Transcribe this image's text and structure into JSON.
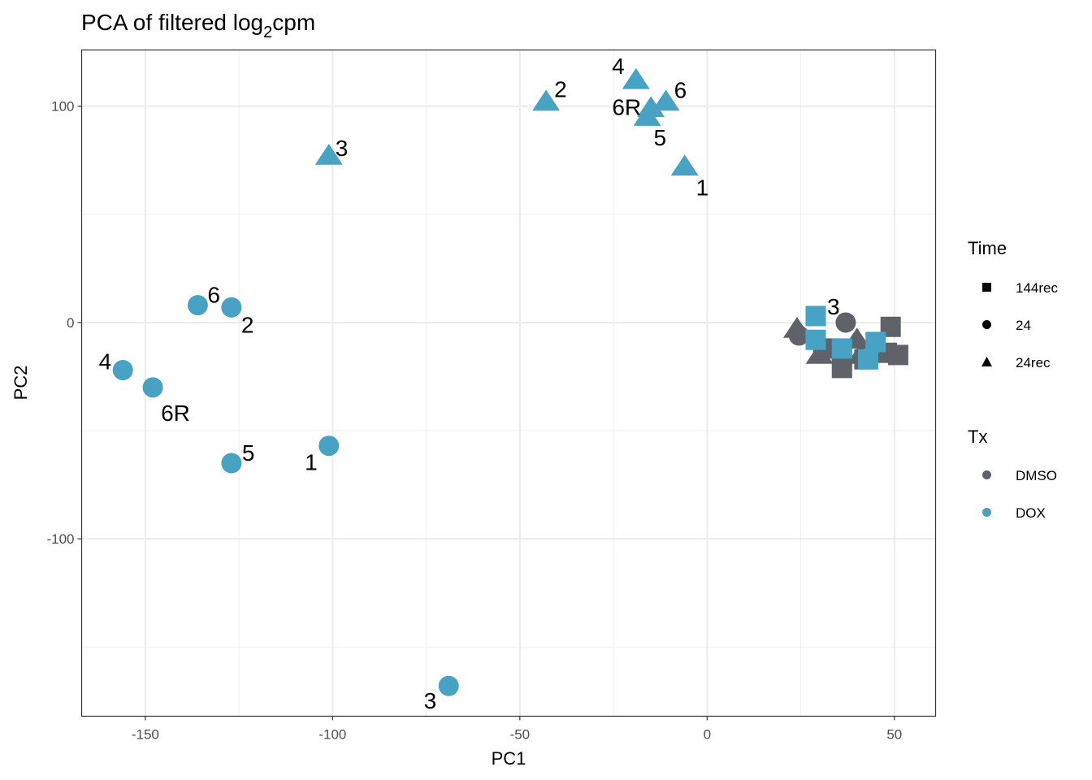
{
  "chart_data": {
    "type": "scatter",
    "title_main": "PCA of filtered log",
    "title_sub": "2",
    "title_end": "cpm",
    "xlabel": "PC1",
    "ylabel": "PC2",
    "xlim": [
      -167,
      61
    ],
    "ylim": [
      -182,
      126
    ],
    "x_ticks": [
      -150,
      -100,
      -50,
      0,
      50
    ],
    "x_tick_labels": [
      "-150",
      "-100",
      "-50",
      "0",
      "50"
    ],
    "y_ticks": [
      -100,
      0,
      100
    ],
    "y_tick_labels": [
      "-100",
      "0",
      "100"
    ],
    "grid": true,
    "legend_position": "right",
    "colors": {
      "DMSO": "#5f6268",
      "DOX": "#48a2c3"
    },
    "legend": {
      "time": {
        "title": "Time",
        "items": [
          {
            "label": "144rec",
            "shape": "square"
          },
          {
            "label": "24",
            "shape": "circle"
          },
          {
            "label": "24rec",
            "shape": "triangle"
          }
        ]
      },
      "tx": {
        "title": "Tx",
        "items": [
          {
            "label": "DMSO"
          },
          {
            "label": "DOX"
          }
        ]
      }
    },
    "points": [
      {
        "x": 24.5,
        "y": -6,
        "time": "24",
        "tx": "DMSO",
        "label": ""
      },
      {
        "x": 37,
        "y": 0,
        "time": "24",
        "tx": "DMSO",
        "label": ""
      },
      {
        "x": 24,
        "y": -3,
        "time": "24rec",
        "tx": "DMSO",
        "label": ""
      },
      {
        "x": 30,
        "y": -15,
        "time": "24rec",
        "tx": "DMSO",
        "label": ""
      },
      {
        "x": 40,
        "y": -8,
        "time": "24rec",
        "tx": "DMSO",
        "label": ""
      },
      {
        "x": 41,
        "y": -15,
        "time": "24rec",
        "tx": "DMSO",
        "label": ""
      },
      {
        "x": 31,
        "y": -12,
        "time": "144rec",
        "tx": "DMSO",
        "label": ""
      },
      {
        "x": 36,
        "y": -15,
        "time": "144rec",
        "tx": "DMSO",
        "label": ""
      },
      {
        "x": 36,
        "y": -21,
        "time": "144rec",
        "tx": "DMSO",
        "label": ""
      },
      {
        "x": 42,
        "y": -17,
        "time": "144rec",
        "tx": "DMSO",
        "label": ""
      },
      {
        "x": 49,
        "y": -2,
        "time": "144rec",
        "tx": "DMSO",
        "label": ""
      },
      {
        "x": 48,
        "y": -14,
        "time": "144rec",
        "tx": "DMSO",
        "label": ""
      },
      {
        "x": 51,
        "y": -15,
        "time": "144rec",
        "tx": "DMSO",
        "label": ""
      },
      {
        "x": 29,
        "y": 3,
        "time": "144rec",
        "tx": "DOX",
        "label": "3"
      },
      {
        "x": 29,
        "y": -8,
        "time": "144rec",
        "tx": "DOX",
        "label": ""
      },
      {
        "x": 36,
        "y": -12,
        "time": "144rec",
        "tx": "DOX",
        "label": ""
      },
      {
        "x": 45,
        "y": -9,
        "time": "144rec",
        "tx": "DOX",
        "label": ""
      },
      {
        "x": 43,
        "y": -17,
        "time": "144rec",
        "tx": "DOX",
        "label": ""
      },
      {
        "x": -101,
        "y": 77,
        "time": "24rec",
        "tx": "DOX",
        "label": "3"
      },
      {
        "x": -43,
        "y": 102,
        "time": "24rec",
        "tx": "DOX",
        "label": "2"
      },
      {
        "x": -19,
        "y": 112,
        "time": "24rec",
        "tx": "DOX",
        "label": "4"
      },
      {
        "x": -11,
        "y": 102,
        "time": "24rec",
        "tx": "DOX",
        "label": "6"
      },
      {
        "x": -15,
        "y": 99,
        "time": "24rec",
        "tx": "DOX",
        "label": "6R"
      },
      {
        "x": -16,
        "y": 95,
        "time": "24rec",
        "tx": "DOX",
        "label": "5"
      },
      {
        "x": -6,
        "y": 72,
        "time": "24rec",
        "tx": "DOX",
        "label": "1"
      },
      {
        "x": -136,
        "y": 8,
        "time": "24",
        "tx": "DOX",
        "label": "6"
      },
      {
        "x": -127,
        "y": 7,
        "time": "24",
        "tx": "DOX",
        "label": "2"
      },
      {
        "x": -156,
        "y": -22,
        "time": "24",
        "tx": "DOX",
        "label": "4"
      },
      {
        "x": -148,
        "y": -30,
        "time": "24",
        "tx": "DOX",
        "label": "6R"
      },
      {
        "x": -127,
        "y": -65,
        "time": "24",
        "tx": "DOX",
        "label": "5"
      },
      {
        "x": -101,
        "y": -57,
        "time": "24",
        "tx": "DOX",
        "label": "1"
      },
      {
        "x": -69,
        "y": -168,
        "time": "24",
        "tx": "DOX",
        "label": "3"
      }
    ]
  }
}
